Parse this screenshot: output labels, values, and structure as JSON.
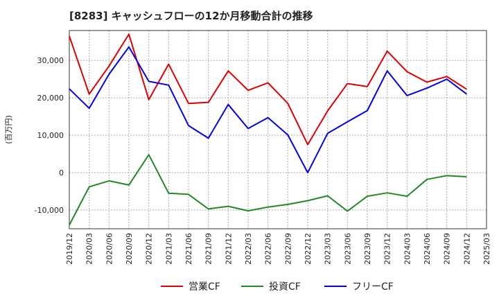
{
  "chart_data": {
    "type": "line",
    "title": "[8283]  キャッシュフローの12か月移動合計の推移",
    "ylabel": "(百万円)",
    "xlabel": "",
    "ylim": [
      -15000,
      38000
    ],
    "yticks": [
      -10000,
      0,
      10000,
      20000,
      30000
    ],
    "ytick_labels": [
      "-10,000",
      "0",
      "10,000",
      "20,000",
      "30,000"
    ],
    "grid": true,
    "legend_position": "bottom-center",
    "x": [
      "2019/12",
      "2020/03",
      "2020/06",
      "2020/09",
      "2020/12",
      "2021/03",
      "2021/06",
      "2021/09",
      "2021/12",
      "2022/03",
      "2022/06",
      "2022/09",
      "2022/12",
      "2023/03",
      "2023/06",
      "2023/09",
      "2023/12",
      "2024/03",
      "2024/06",
      "2024/09",
      "2024/12",
      "2025/03"
    ],
    "series": [
      {
        "name": "営業CF",
        "color": "#dd0000",
        "values": [
          36500,
          21000,
          28500,
          37000,
          19500,
          29000,
          18500,
          18800,
          27200,
          22000,
          24000,
          18500,
          7500,
          16500,
          23800,
          23000,
          32500,
          27000,
          24200,
          25700,
          22300,
          null
        ]
      },
      {
        "name": "投資CF",
        "color": "#228822",
        "values": [
          -14000,
          -3800,
          -2200,
          -3300,
          4800,
          -5500,
          -5800,
          -9700,
          -9000,
          -10200,
          -9200,
          -8500,
          -7500,
          -6200,
          -10300,
          -6300,
          -5400,
          -6300,
          -1800,
          -800,
          -1100,
          null
        ]
      },
      {
        "name": "フリーCF",
        "color": "#0000dd",
        "values": [
          22400,
          17200,
          26300,
          33600,
          24400,
          23400,
          12600,
          9200,
          18200,
          11800,
          14700,
          10100,
          0,
          10500,
          13600,
          16600,
          27200,
          20600,
          22600,
          25000,
          21000,
          null
        ]
      }
    ]
  }
}
